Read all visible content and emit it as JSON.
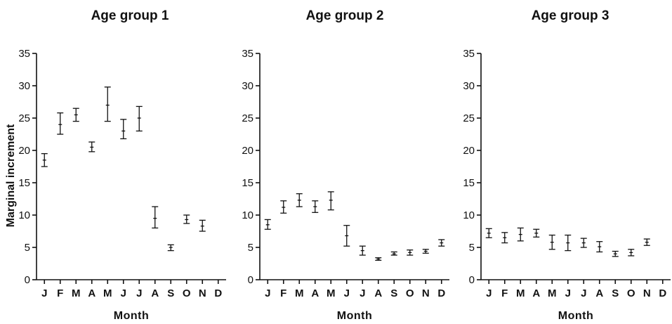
{
  "figure": {
    "y_axis_label": "Marginal increment"
  },
  "chart_data": [
    {
      "type": "scatter",
      "title": "Age group 1",
      "xlabel": "Month",
      "ylabel": "Marginal increment",
      "categories": [
        "J",
        "F",
        "M",
        "A",
        "M",
        "J",
        "J",
        "A",
        "S",
        "O",
        "N",
        "D"
      ],
      "ylim": [
        0,
        35
      ],
      "yticks": [
        0,
        5,
        10,
        15,
        20,
        25,
        30,
        35
      ],
      "error_bars": "mean with vertical range bars",
      "series": [
        {
          "mean": [
            18.5,
            24.0,
            25.5,
            20.5,
            27.0,
            23.0,
            25.0,
            9.5,
            5.0,
            9.3,
            8.3,
            null
          ],
          "low": [
            17.5,
            22.5,
            24.5,
            19.8,
            24.5,
            21.8,
            23.0,
            8.0,
            4.5,
            8.7,
            7.5,
            null
          ],
          "high": [
            19.5,
            25.8,
            26.5,
            21.3,
            29.8,
            24.8,
            26.8,
            11.3,
            5.4,
            10.0,
            9.2,
            null
          ]
        }
      ]
    },
    {
      "type": "scatter",
      "title": "Age group 2",
      "xlabel": "Month",
      "categories": [
        "J",
        "F",
        "M",
        "A",
        "M",
        "J",
        "J",
        "A",
        "S",
        "O",
        "N",
        "D"
      ],
      "ylim": [
        0,
        35
      ],
      "yticks": [
        0,
        5,
        10,
        15,
        20,
        25,
        30,
        35
      ],
      "error_bars": "mean with vertical range bars",
      "series": [
        {
          "mean": [
            8.5,
            11.2,
            12.3,
            11.3,
            12.3,
            6.8,
            4.5,
            3.2,
            4.0,
            4.2,
            4.4,
            5.7
          ],
          "low": [
            7.8,
            10.3,
            11.3,
            10.4,
            10.8,
            5.2,
            3.8,
            3.0,
            3.8,
            3.8,
            4.1,
            5.2
          ],
          "high": [
            9.3,
            12.2,
            13.3,
            12.2,
            13.6,
            8.4,
            5.2,
            3.4,
            4.3,
            4.6,
            4.7,
            6.2
          ]
        }
      ]
    },
    {
      "type": "scatter",
      "title": "Age group 3",
      "xlabel": "Month",
      "categories": [
        "J",
        "F",
        "M",
        "A",
        "M",
        "J",
        "J",
        "A",
        "S",
        "O",
        "N",
        "D"
      ],
      "ylim": [
        0,
        35
      ],
      "yticks": [
        0,
        5,
        10,
        15,
        20,
        25,
        30,
        35
      ],
      "error_bars": "mean with vertical range bars",
      "series": [
        {
          "mean": [
            7.2,
            6.5,
            7.0,
            7.2,
            5.8,
            5.7,
            5.7,
            5.1,
            4.0,
            4.2,
            5.8,
            null
          ],
          "low": [
            6.5,
            5.7,
            6.0,
            6.6,
            4.7,
            4.5,
            5.0,
            4.3,
            3.6,
            3.7,
            5.3,
            null
          ],
          "high": [
            7.9,
            7.3,
            8.0,
            7.8,
            6.9,
            6.9,
            6.4,
            5.9,
            4.4,
            4.7,
            6.3,
            null
          ]
        }
      ]
    }
  ]
}
